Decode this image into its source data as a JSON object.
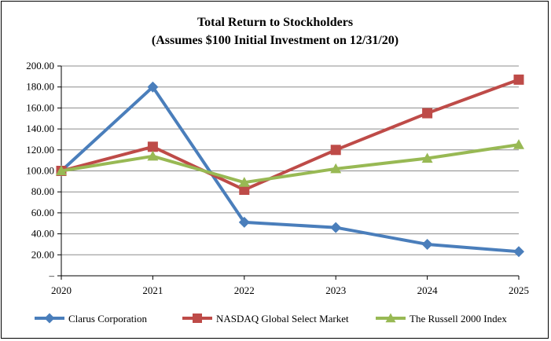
{
  "chart_data": {
    "type": "line",
    "title": "Total Return to Stockholders",
    "subtitle": "(Assumes $100 Initial Investment on 12/31/20)",
    "categories": [
      "2020",
      "2021",
      "2022",
      "2023",
      "2024",
      "2025"
    ],
    "y_ticks": [
      "–",
      "20.00",
      "40.00",
      "60.00",
      "80.00",
      "100.00",
      "120.00",
      "140.00",
      "160.00",
      "180.00",
      "200.00"
    ],
    "ylim": [
      0,
      200
    ],
    "grid": true,
    "legend_position": "bottom",
    "series": [
      {
        "name": "Clarus Corporation",
        "color": "#4a7ebb",
        "marker": "diamond",
        "values": [
          100,
          180,
          51,
          46,
          30,
          23
        ]
      },
      {
        "name": "NASDAQ Global Select Market",
        "color": "#be4b48",
        "marker": "square",
        "values": [
          100,
          123,
          82,
          120,
          155,
          187
        ]
      },
      {
        "name": "The Russell 2000 Index",
        "color": "#98b954",
        "marker": "triangle",
        "values": [
          100,
          114,
          89,
          102,
          112,
          125
        ]
      }
    ]
  }
}
